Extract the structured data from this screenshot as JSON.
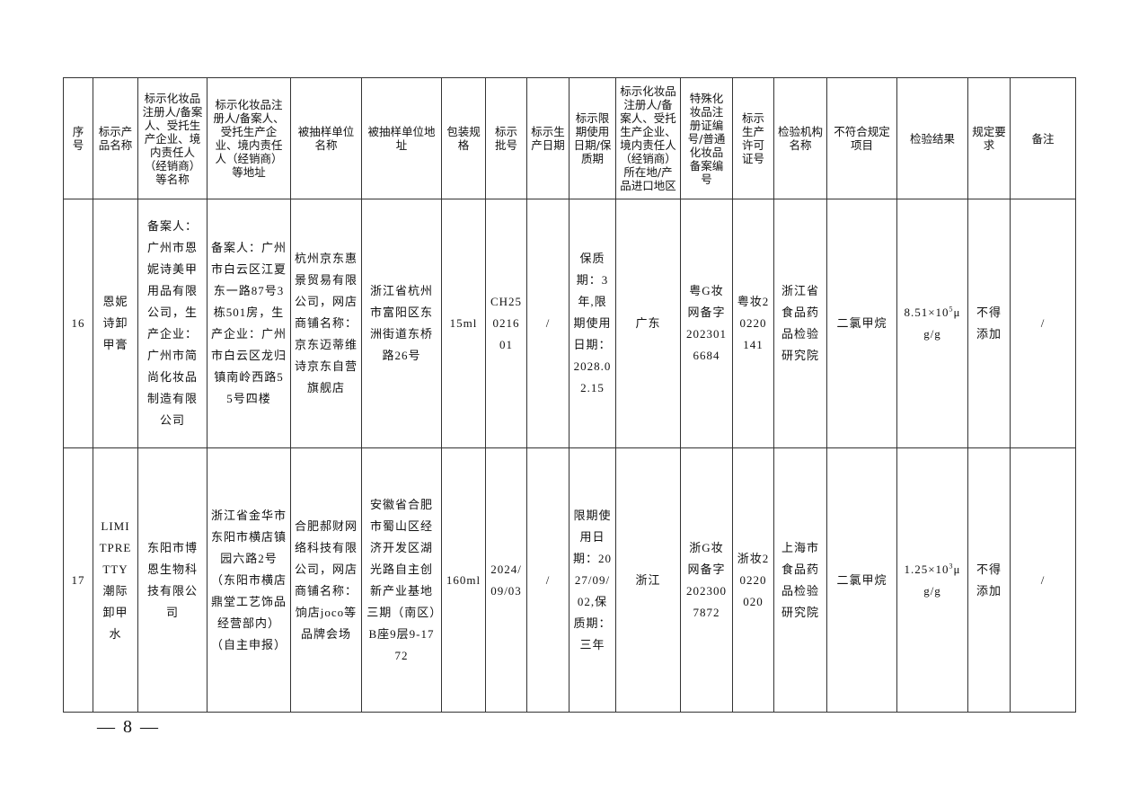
{
  "table": {
    "headers": [
      "序号",
      "标示产品名称",
      "标示化妆品注册人/备案人、受托生产企业、境内责任人（经销商）等名称",
      "标示化妆品注册人/备案人、受托生产企业、境内责任人（经销商）等地址",
      "被抽样单位名称",
      "被抽样单位地址",
      "包装规格",
      "标示批号",
      "标示生产日期",
      "标示限期使用日期/保质期",
      "标示化妆品注册人/备案人、受托生产企业、境内责任人（经销商）所在地/产品进口地区",
      "特殊化妆品注册证编号/普通化妆品备案编号",
      "标示生产许可证号",
      "检验机构名称",
      "不符合规定项目",
      "检验结果",
      "规定要求",
      "备注"
    ],
    "rows": [
      {
        "no": "16",
        "product": "恩妮诗卸甲膏",
        "company": "备案人：广州市恩妮诗美甲用品有限公司，生产企业：广州市简尚化妆品制造有限公司",
        "address": "备案人：广州市白云区江夏东一路87号3栋501房，生产企业：广州市白云区龙归镇南岭西路55号四楼",
        "sampled_unit": "杭州京东惠景贸易有限公司，网店商铺名称：京东迈蒂维诗京东自营旗舰店",
        "sampled_address": "浙江省杭州市富阳区东洲街道东桥路26号",
        "spec": "15ml",
        "batch": "CH25021601",
        "prod_date": "/",
        "expiry": "保质期：3年,限期使用日期：2028.02.15",
        "region": "广东",
        "filing_no": "粤G妆网备字2023016684",
        "license": "粤妆20220141",
        "lab": "浙江省食品药品检验研究院",
        "item": "二氯甲烷",
        "result_base": "8.51×10",
        "result_exp": "5",
        "result_unit": "μg/g",
        "requirement": "不得添加",
        "remark": "/"
      },
      {
        "no": "17",
        "product": "LIMITPRETTY潮际卸甲水",
        "company": "东阳市博恩生物科技有限公司",
        "address": "浙江省金华市东阳市横店镇园六路2号（东阳市横店鼎堂工艺饰品经营部内）（自主申报）",
        "sampled_unit": "合肥郝财网络科技有限公司，网店商铺名称：饷店joco等品牌会场",
        "sampled_address": "安徽省合肥市蜀山区经济开发区湖光路自主创新产业基地三期（南区）B座9层9-1772",
        "spec": "160ml",
        "batch": "2024/09/03",
        "prod_date": "/",
        "expiry": "限期使用日期：2027/09/02,保质期：三年",
        "region": "浙江",
        "filing_no": "浙G妆网备字2023007872",
        "license": "浙妆20220020",
        "lab": "上海市食品药品检验研究院",
        "item": "二氯甲烷",
        "result_base": "1.25×10",
        "result_exp": "3",
        "result_unit": "μg/g",
        "requirement": "不得添加",
        "remark": "/"
      }
    ]
  },
  "footer": {
    "page": "— 8 —"
  }
}
